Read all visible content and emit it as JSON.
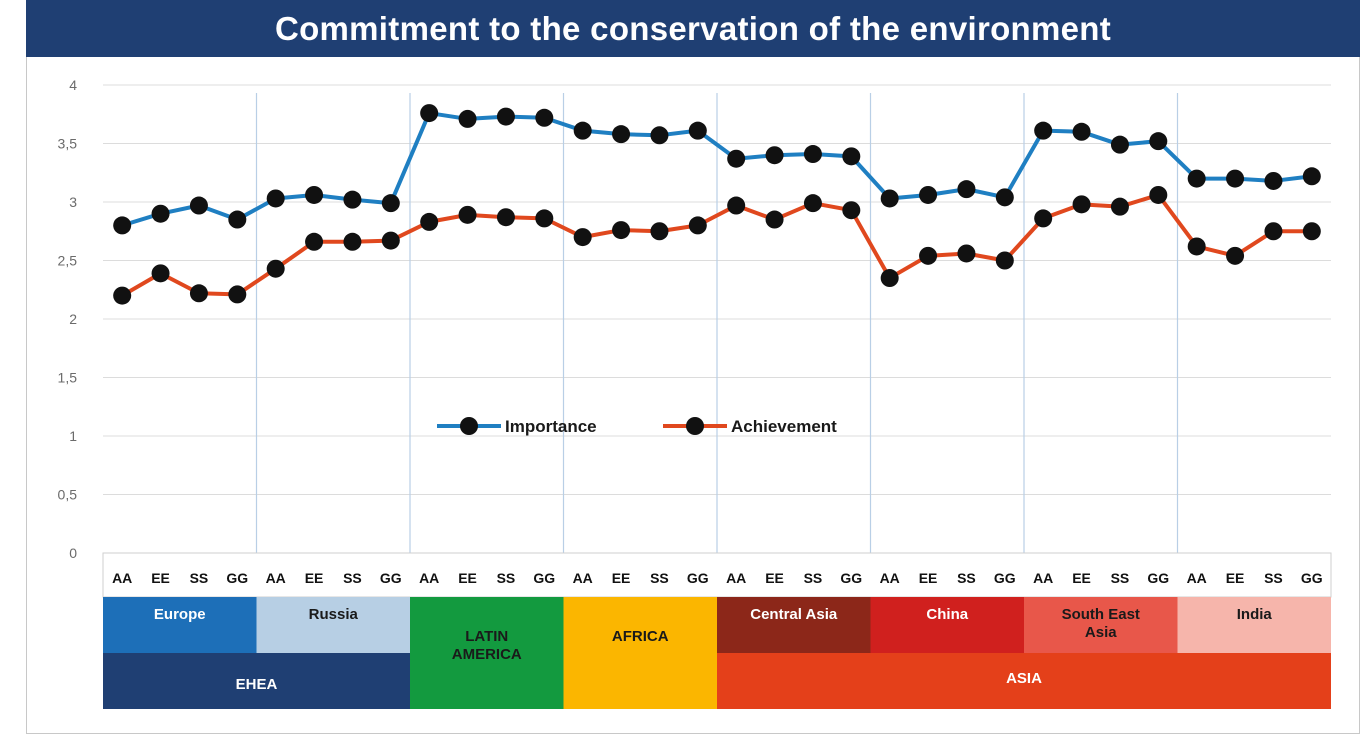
{
  "title": "Commitment to the conservation of the environment",
  "chart_data": {
    "type": "line",
    "ylim": [
      0,
      4
    ],
    "yticks": [
      "0",
      "0,5",
      "1",
      "1,5",
      "2",
      "2,5",
      "3",
      "3,5",
      "4"
    ],
    "categories": [
      "AA",
      "EE",
      "SS",
      "GG",
      "AA",
      "EE",
      "SS",
      "GG",
      "AA",
      "EE",
      "SS",
      "GG",
      "AA",
      "EE",
      "SS",
      "GG",
      "AA",
      "EE",
      "SS",
      "GG",
      "AA",
      "EE",
      "SS",
      "GG",
      "AA",
      "EE",
      "SS",
      "GG",
      "AA",
      "EE",
      "SS",
      "GG"
    ],
    "grid": true,
    "legend_position": "center",
    "series": [
      {
        "name": "Importance",
        "color": "#1f7fc2",
        "values": [
          2.8,
          2.9,
          2.97,
          2.85,
          3.03,
          3.06,
          3.02,
          2.99,
          3.76,
          3.71,
          3.73,
          3.72,
          3.61,
          3.58,
          3.57,
          3.61,
          3.37,
          3.4,
          3.41,
          3.39,
          3.03,
          3.06,
          3.11,
          3.04,
          3.61,
          3.6,
          3.49,
          3.52,
          3.2,
          3.2,
          3.18,
          3.22
        ]
      },
      {
        "name": "Achievement",
        "color": "#e0481e",
        "values": [
          2.2,
          2.39,
          2.22,
          2.21,
          2.43,
          2.66,
          2.66,
          2.67,
          2.83,
          2.89,
          2.87,
          2.86,
          2.7,
          2.76,
          2.75,
          2.8,
          2.97,
          2.85,
          2.99,
          2.93,
          2.35,
          2.54,
          2.56,
          2.5,
          2.86,
          2.98,
          2.96,
          3.06,
          2.62,
          2.54,
          2.75,
          2.75
        ]
      }
    ],
    "region_groups": [
      {
        "label": "Europe",
        "color": "#1d6fb8",
        "text_color": "#ffffff"
      },
      {
        "label": "Russia",
        "color": "#b7cfe4",
        "text_color": "#1a1a1a"
      },
      {
        "label": "LATIN AMERICA",
        "color": "#139a3f",
        "text_color": "#1a1a1a"
      },
      {
        "label": "AFRICA",
        "color": "#fbb600",
        "text_color": "#1a1a1a"
      },
      {
        "label": "Central Asia",
        "color": "#8c2719",
        "text_color": "#ffffff"
      },
      {
        "label": "China",
        "color": "#d0201e",
        "text_color": "#ffffff"
      },
      {
        "label": "South East Asia",
        "color": "#e8574a",
        "text_color": "#1a1a1a"
      },
      {
        "label": "India",
        "color": "#f6b5ab",
        "text_color": "#1a1a1a"
      }
    ],
    "macro_regions": [
      {
        "label": "EHEA",
        "color": "#1f3f73"
      },
      {
        "label": "ASIA",
        "color": "#e4401a"
      }
    ]
  }
}
